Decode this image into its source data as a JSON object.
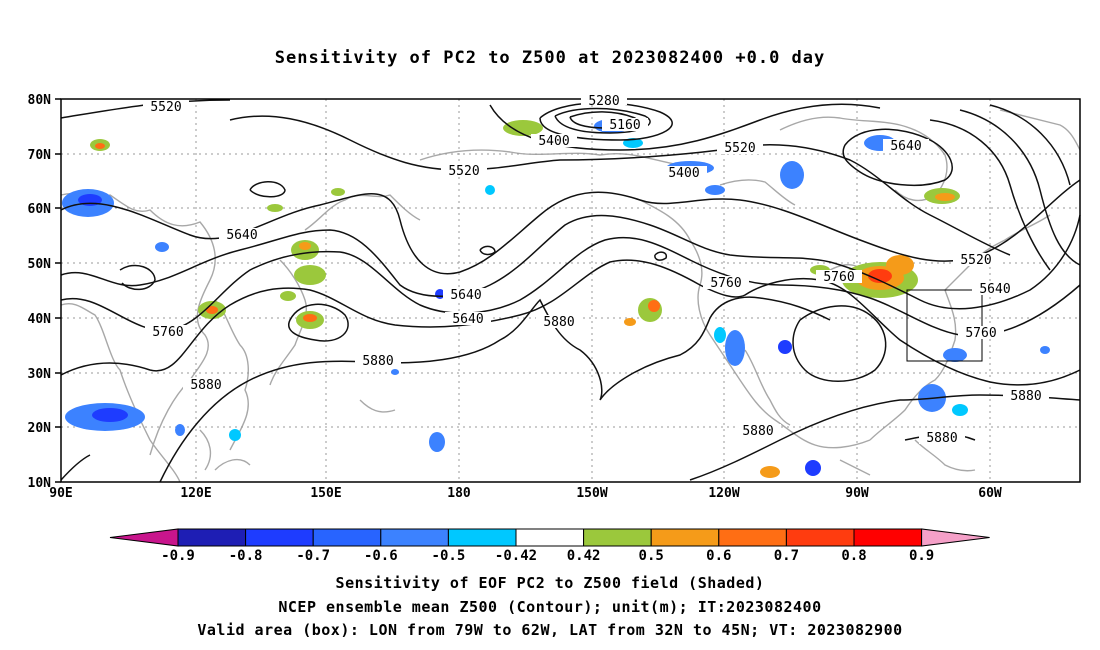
{
  "title": "Sensitivity of PC2 to Z500 at 2023082400 +0.0 day",
  "lat_labels": [
    "80N",
    "70N",
    "60N",
    "50N",
    "40N",
    "30N",
    "20N",
    "10N"
  ],
  "lon_labels": [
    "90E",
    "120E",
    "150E",
    "180",
    "150W",
    "120W",
    "90W",
    "60W"
  ],
  "contour_labels": [
    "5520",
    "5280",
    "5160",
    "5400",
    "5520",
    "5640",
    "5520",
    "5400",
    "5640",
    "5640",
    "5760",
    "5880",
    "5640",
    "5760",
    "5880",
    "5760",
    "5880",
    "5520",
    "5640",
    "5760",
    "5880",
    "5880",
    "5880"
  ],
  "colorbar": {
    "labels": [
      "-0.9",
      "-0.8",
      "-0.7",
      "-0.6",
      "-0.5",
      "-0.42",
      "0.42",
      "0.5",
      "0.6",
      "0.7",
      "0.8",
      "0.9"
    ],
    "colors": [
      "#c8158c",
      "#1e1eb4",
      "#1e3cff",
      "#2864ff",
      "#3c82ff",
      "#00c8ff",
      "#ffffff",
      "#9bc83c",
      "#f59b19",
      "#ff6e14",
      "#ff3c0f",
      "#ff0000",
      "#f5a0c8"
    ]
  },
  "captions": [
    "Sensitivity of EOF PC2 to Z500 field (Shaded)",
    "NCEP ensemble mean Z500 (Contour); unit(m); IT:2023082400",
    "Valid area (box): LON from 79W to 62W, LAT from 32N to 45N; VT: 2023082900"
  ]
}
